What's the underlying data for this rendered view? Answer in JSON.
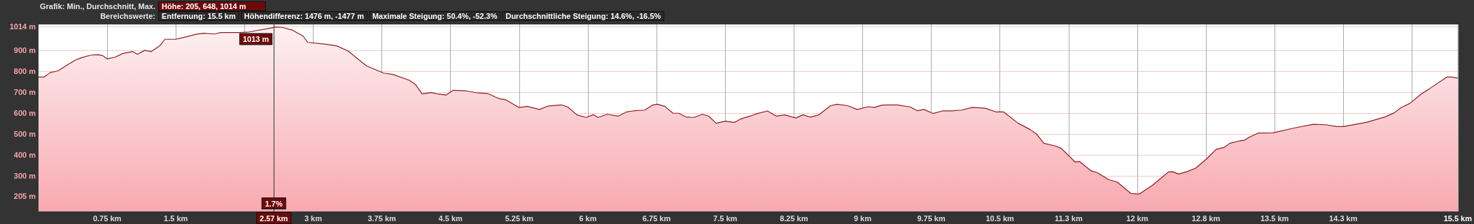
{
  "chart_data": {
    "type": "area",
    "title": "Grafik: Min., Durchschnitt, Max.",
    "subtitle": "Bereichswerte:",
    "annotations": [
      "Höhe: 205, 648, 1014 m",
      "Entfernung: 15.5 km",
      "Höhendifferenz: 1476 m, -1477 m",
      "Maximale Steigung: 50.4%, -52.3%",
      "Durchschnittliche Steigung: 14.6%, -16.5%",
      {
        "text": "1013 m",
        "x": 2.57,
        "y": 1013
      },
      {
        "text": "1.7%",
        "x": 2.57
      }
    ],
    "ref_lines": [
      {
        "axis": "x",
        "value": 2.57,
        "label": "2.57 km",
        "color": "#333333"
      }
    ],
    "x": [
      0,
      0.06,
      0.13,
      0.21,
      0.3,
      0.4,
      0.47,
      0.57,
      0.65,
      0.7,
      0.75,
      0.84,
      0.92,
      1.03,
      1.08,
      1.16,
      1.23,
      1.33,
      1.38,
      1.5,
      1.62,
      1.72,
      1.8,
      1.92,
      1.99,
      2.19,
      2.3,
      2.53,
      2.6,
      2.67,
      2.77,
      2.89,
      2.94,
      3.14,
      3.26,
      3.38,
      3.58,
      3.77,
      3.87,
      4.05,
      4.12,
      4.19,
      4.29,
      4.36,
      4.45,
      4.53,
      4.67,
      4.8,
      4.9,
      5.03,
      5.1,
      5.25,
      5.34,
      5.47,
      5.57,
      5.71,
      5.78,
      5.88,
      5.98,
      6.06,
      6.11,
      6.21,
      6.33,
      6.42,
      6.49,
      6.62,
      6.71,
      6.76,
      6.84,
      6.93,
      6.99,
      7.08,
      7.16,
      7.25,
      7.32,
      7.4,
      7.5,
      7.6,
      7.67,
      7.79,
      7.84,
      7.96,
      8.06,
      8.15,
      8.27,
      8.35,
      8.43,
      8.52,
      8.65,
      8.72,
      8.84,
      8.94,
      9.06,
      9.13,
      9.21,
      9.3,
      9.38,
      9.52,
      9.6,
      9.67,
      9.77,
      9.87,
      9.97,
      10.08,
      10.2,
      10.34,
      10.46,
      10.54,
      10.7,
      10.83,
      10.9,
      10.98,
      11.1,
      11.17,
      11.32,
      11.37,
      11.49,
      11.56,
      11.69,
      11.78,
      11.93,
      12.02,
      12.17,
      12.34,
      12.39,
      12.45,
      12.54,
      12.64,
      12.76,
      12.86,
      12.95,
      13.01,
      13.12,
      13.17,
      13.22,
      13.32,
      13.48,
      13.72,
      13.92,
      14.06,
      14.18,
      14.25,
      14.5,
      14.71,
      14.81,
      14.88,
      14.98,
      15.1,
      15.18,
      15.38,
      15.43,
      15.5
    ],
    "series": [
      {
        "color": "#8b1c1c",
        "values": [
          773,
          773,
          795,
          802,
          827,
          854,
          866,
          878,
          880,
          876,
          860,
          869,
          886,
          895,
          882,
          901,
          895,
          925,
          954,
          954,
          966,
          978,
          983,
          979,
          986,
          986,
          989,
          1007,
          1013,
          1010,
          998,
          969,
          939,
          930,
          922,
          898,
          827,
          792,
          786,
          758,
          736,
          692,
          699,
          692,
          687,
          710,
          707,
          697,
          695,
          670,
          665,
          627,
          633,
          618,
          635,
          640,
          630,
          592,
          580,
          593,
          580,
          595,
          586,
          606,
          611,
          615,
          640,
          643,
          633,
          600,
          600,
          581,
          580,
          595,
          586,
          552,
          562,
          556,
          573,
          589,
          597,
          611,
          586,
          592,
          577,
          593,
          581,
          592,
          636,
          643,
          636,
          618,
          631,
          628,
          639,
          640,
          640,
          630,
          612,
          618,
          599,
          611,
          611,
          615,
          628,
          624,
          606,
          606,
          552,
          522,
          500,
          456,
          444,
          432,
          367,
          369,
          326,
          316,
          282,
          271,
          216,
          213,
          257,
          319,
          320,
          309,
          320,
          338,
          383,
          427,
          437,
          456,
          468,
          471,
          485,
          505,
          506,
          530,
          547,
          545,
          536,
          536,
          556,
          583,
          603,
          627,
          648,
          692,
          714,
          773,
          773,
          768
        ]
      }
    ],
    "xlim": [
      0,
      15.5
    ],
    "ylim": [
      130,
      1025
    ],
    "xticks": [
      {
        "value": 0.75,
        "label": "0.75 km"
      },
      {
        "value": 1.5,
        "label": "1.5 km"
      },
      {
        "value": 2.25,
        "label": null
      },
      {
        "value": 3,
        "label": "3 km"
      },
      {
        "value": 3.75,
        "label": "3.75 km"
      },
      {
        "value": 4.5,
        "label": "4.5 km"
      },
      {
        "value": 5.25,
        "label": "5.25 km"
      },
      {
        "value": 6,
        "label": "6 km"
      },
      {
        "value": 6.75,
        "label": "6.75 km"
      },
      {
        "value": 7.5,
        "label": "7.5 km"
      },
      {
        "value": 8.25,
        "label": "8.25 km"
      },
      {
        "value": 9,
        "label": "9 km"
      },
      {
        "value": 9.75,
        "label": "9.75 km"
      },
      {
        "value": 10.5,
        "label": "10.5 km"
      },
      {
        "value": 11.25,
        "label": "11.3 km"
      },
      {
        "value": 12,
        "label": "12 km"
      },
      {
        "value": 12.75,
        "label": "12.8 km"
      },
      {
        "value": 13.5,
        "label": "13.5 km"
      },
      {
        "value": 14.25,
        "label": "14.3 km"
      },
      {
        "value": 15,
        "label": null
      },
      {
        "value": 15.5,
        "label": "15.5 km"
      }
    ],
    "yticks": [
      {
        "value": 205,
        "label": "205 m"
      },
      {
        "value": 300,
        "label": "300 m"
      },
      {
        "value": 400,
        "label": "400 m"
      },
      {
        "value": 500,
        "label": "500 m"
      },
      {
        "value": 600,
        "label": "600 m"
      },
      {
        "value": 700,
        "label": "700 m"
      },
      {
        "value": 800,
        "label": "800 m"
      },
      {
        "value": 900,
        "label": "900 m"
      },
      {
        "value": 1014,
        "label": "1014 m"
      }
    ],
    "grid": true,
    "marker": "none",
    "line_style": "solid"
  }
}
